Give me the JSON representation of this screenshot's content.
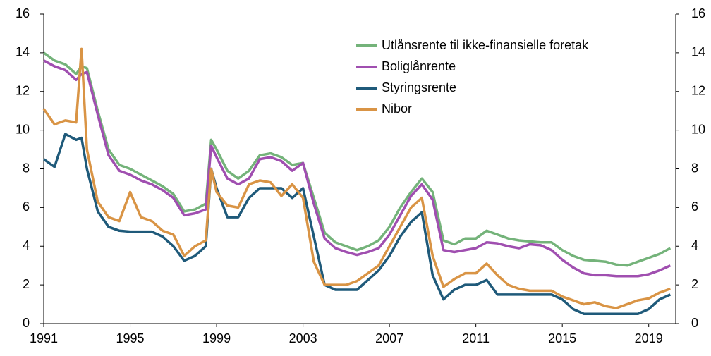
{
  "chart_data": {
    "type": "line",
    "x": [
      1991,
      1991.5,
      1992,
      1992.5,
      1992.75,
      1993,
      1993.5,
      1994,
      1994.5,
      1995,
      1995.5,
      1996,
      1996.5,
      1997,
      1997.5,
      1998,
      1998.5,
      1998.75,
      1999,
      1999.5,
      2000,
      2000.5,
      2001,
      2001.5,
      2002,
      2002.5,
      2003,
      2003.5,
      2004,
      2004.5,
      2005,
      2005.5,
      2006,
      2006.5,
      2007,
      2007.5,
      2008,
      2008.5,
      2009,
      2009.5,
      2010,
      2010.5,
      2011,
      2011.5,
      2012,
      2012.5,
      2013,
      2013.5,
      2014,
      2014.5,
      2015,
      2015.5,
      2016,
      2016.5,
      2017,
      2017.5,
      2018,
      2018.5,
      2019,
      2019.5,
      2020
    ],
    "series": [
      {
        "name": "Utlånsrente til ikke-finansielle foretak",
        "color": "#74b37a",
        "values": [
          14.0,
          13.6,
          13.4,
          12.9,
          13.3,
          13.2,
          11.0,
          9.0,
          8.2,
          8.0,
          7.7,
          7.4,
          7.1,
          6.7,
          5.8,
          5.9,
          6.2,
          9.5,
          9.0,
          7.9,
          7.5,
          7.9,
          8.7,
          8.8,
          8.6,
          8.2,
          8.3,
          6.5,
          4.7,
          4.2,
          4.0,
          3.8,
          4.0,
          4.3,
          5.0,
          6.0,
          6.8,
          7.5,
          6.8,
          4.3,
          4.1,
          4.4,
          4.4,
          4.8,
          4.6,
          4.4,
          4.3,
          4.25,
          4.2,
          4.2,
          3.8,
          3.5,
          3.3,
          3.25,
          3.2,
          3.05,
          3.0,
          3.2,
          3.4,
          3.6,
          3.9
        ]
      },
      {
        "name": "Boliglånrente",
        "color": "#a04fb0",
        "values": [
          13.6,
          13.3,
          13.1,
          12.6,
          12.9,
          13.0,
          10.8,
          8.7,
          7.9,
          7.7,
          7.4,
          7.2,
          6.9,
          6.5,
          5.6,
          5.7,
          5.9,
          9.2,
          8.6,
          7.5,
          7.2,
          7.5,
          8.5,
          8.6,
          8.4,
          7.9,
          8.3,
          6.2,
          4.4,
          3.9,
          3.7,
          3.55,
          3.7,
          3.9,
          4.6,
          5.6,
          6.6,
          7.2,
          6.4,
          3.8,
          3.7,
          3.8,
          3.9,
          4.2,
          4.15,
          4.0,
          3.9,
          4.1,
          4.05,
          3.8,
          3.3,
          2.9,
          2.6,
          2.5,
          2.5,
          2.45,
          2.45,
          2.45,
          2.55,
          2.75,
          3.0
        ]
      },
      {
        "name": "Styringsrente",
        "color": "#1f5a7a",
        "values": [
          8.5,
          8.1,
          9.8,
          9.5,
          9.6,
          8.0,
          5.8,
          5.0,
          4.8,
          4.75,
          4.75,
          4.75,
          4.5,
          4.0,
          3.25,
          3.5,
          4.0,
          8.0,
          7.0,
          5.5,
          5.5,
          6.5,
          7.0,
          7.0,
          7.0,
          6.5,
          7.0,
          4.5,
          2.0,
          1.75,
          1.75,
          1.75,
          2.25,
          2.75,
          3.5,
          4.5,
          5.25,
          5.75,
          2.5,
          1.25,
          1.75,
          2.0,
          2.0,
          2.25,
          1.5,
          1.5,
          1.5,
          1.5,
          1.5,
          1.5,
          1.25,
          0.75,
          0.5,
          0.5,
          0.5,
          0.5,
          0.5,
          0.5,
          0.75,
          1.25,
          1.5
        ]
      },
      {
        "name": "Nibor",
        "color": "#d99445",
        "values": [
          11.1,
          10.3,
          10.5,
          10.4,
          14.2,
          9.0,
          6.3,
          5.5,
          5.3,
          6.8,
          5.5,
          5.3,
          4.8,
          4.6,
          3.5,
          4.0,
          4.3,
          8.0,
          6.8,
          6.1,
          6.0,
          7.2,
          7.4,
          7.3,
          6.6,
          7.2,
          6.5,
          3.2,
          2.0,
          2.0,
          2.0,
          2.2,
          2.6,
          3.0,
          4.0,
          5.0,
          6.0,
          6.5,
          3.5,
          1.9,
          2.3,
          2.6,
          2.6,
          3.1,
          2.5,
          2.0,
          1.8,
          1.7,
          1.7,
          1.7,
          1.4,
          1.2,
          1.0,
          1.1,
          0.9,
          0.8,
          1.0,
          1.2,
          1.3,
          1.6,
          1.8
        ]
      }
    ],
    "xlim": [
      1991,
      2020.25
    ],
    "xticks": [
      1991,
      1995,
      1999,
      2003,
      2007,
      2011,
      2015,
      2019
    ],
    "ylim": [
      0,
      16
    ],
    "yticks": [
      0,
      2,
      4,
      6,
      8,
      10,
      12,
      14,
      16
    ],
    "legend": "top-right"
  }
}
